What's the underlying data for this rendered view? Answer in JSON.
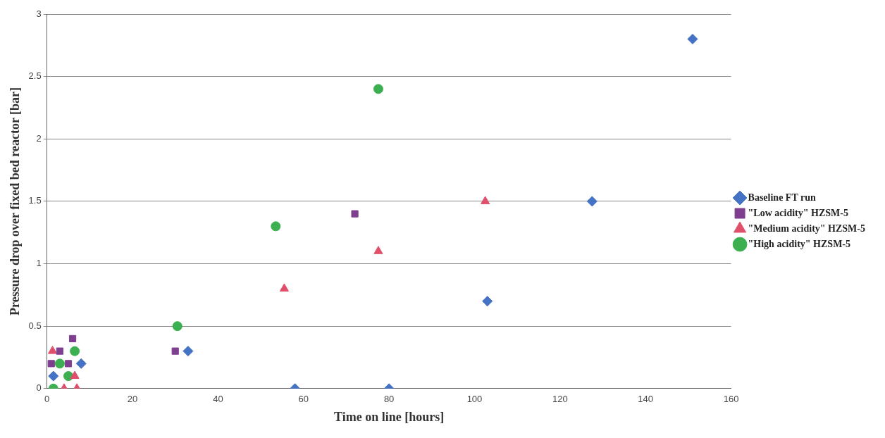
{
  "chart_data": {
    "type": "scatter",
    "xlabel": "Time on line [hours]",
    "ylabel": "Pressure drop over fixed bed reactor [bar]",
    "xlim": [
      0,
      160
    ],
    "xticks": [
      0,
      20,
      40,
      60,
      80,
      100,
      120,
      140,
      160
    ],
    "ylim": [
      0,
      3
    ],
    "yticks": [
      0,
      0.5,
      1,
      1.5,
      2,
      2.5,
      3
    ],
    "grid": "y",
    "legend": "right",
    "series": [
      {
        "name": "Baseline FT run",
        "color": "#4472c4",
        "marker": "diamond",
        "x": [
          1.5,
          8,
          33,
          58,
          80,
          103,
          127.5,
          151
        ],
        "values": [
          0.1,
          0.2,
          0.3,
          0,
          0,
          0.7,
          1.5,
          2.8
        ]
      },
      {
        "name": "\"Low acidity\" HZSM-5",
        "color": "#7f3f8f",
        "marker": "square",
        "x": [
          1,
          3,
          5,
          6,
          30,
          72
        ],
        "values": [
          0.2,
          0.3,
          0.2,
          0.4,
          0.3,
          1.4
        ]
      },
      {
        "name": "\"Medium acidity\" HZSM-5",
        "color": "#e0506a",
        "marker": "triangle",
        "x": [
          1.3,
          4,
          6.5,
          7,
          55.5,
          77.5,
          102.5
        ],
        "values": [
          0.3,
          0,
          0.1,
          0,
          0.8,
          1.1,
          1.5
        ]
      },
      {
        "name": "\"High acidity\" HZSM-5",
        "color": "#3cb050",
        "marker": "circle",
        "x": [
          1.5,
          3,
          5,
          6.5,
          30.5,
          53.5,
          77.5
        ],
        "values": [
          0,
          0.2,
          0.1,
          0.3,
          0.5,
          1.3,
          2.4
        ]
      }
    ]
  }
}
